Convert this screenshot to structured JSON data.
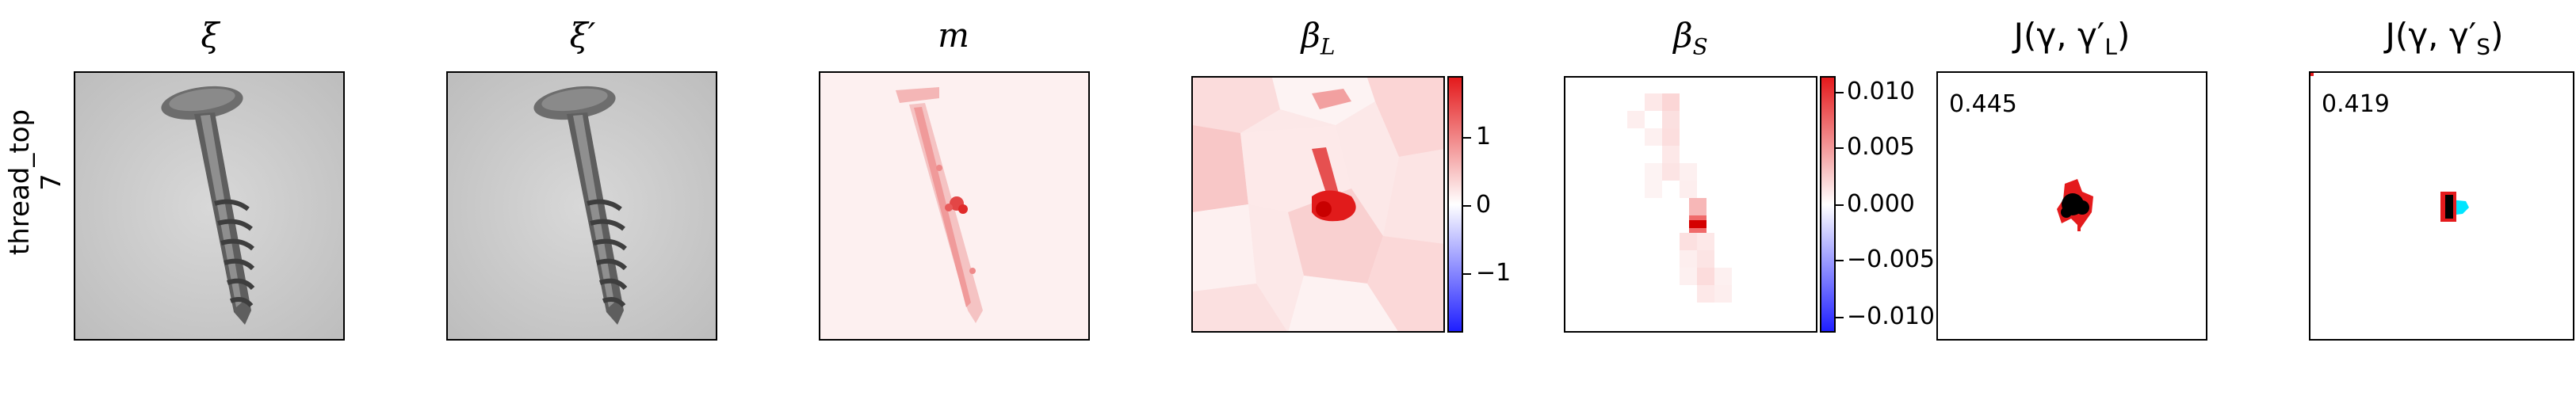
{
  "row": {
    "category": "thread_top",
    "index": "7"
  },
  "panels": [
    {
      "title": "ξ"
    },
    {
      "title": "ξ′"
    },
    {
      "title": "m"
    },
    {
      "title": "β",
      "sub": "L"
    },
    {
      "title": "β",
      "sub": "S"
    },
    {
      "title": "J(γ, γ′",
      "sub": "L",
      "tail": ")"
    },
    {
      "title": "J(γ, γ′",
      "sub": "S",
      "tail": ")"
    }
  ],
  "colorbars": {
    "beta_L": {
      "ticks": [
        "1",
        "0",
        "−1"
      ]
    },
    "beta_S": {
      "ticks": [
        "0.010",
        "0.005",
        "0.000",
        "−0.005",
        "−0.010"
      ]
    }
  },
  "scores": {
    "J_L": "0.445",
    "J_S": "0.419"
  },
  "colors": {
    "positive": "#e41a1c",
    "negative": "#1f1fff",
    "overlay": "#00e5ff",
    "pred": "#000000"
  }
}
